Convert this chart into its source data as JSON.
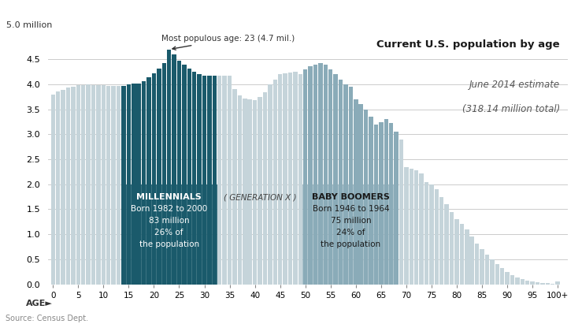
{
  "ages": [
    0,
    1,
    2,
    3,
    4,
    5,
    6,
    7,
    8,
    9,
    10,
    11,
    12,
    13,
    14,
    15,
    16,
    17,
    18,
    19,
    20,
    21,
    22,
    23,
    24,
    25,
    26,
    27,
    28,
    29,
    30,
    31,
    32,
    33,
    34,
    35,
    36,
    37,
    38,
    39,
    40,
    41,
    42,
    43,
    44,
    45,
    46,
    47,
    48,
    49,
    50,
    51,
    52,
    53,
    54,
    55,
    56,
    57,
    58,
    59,
    60,
    61,
    62,
    63,
    64,
    65,
    66,
    67,
    68,
    69,
    70,
    71,
    72,
    73,
    74,
    75,
    76,
    77,
    78,
    79,
    80,
    81,
    82,
    83,
    84,
    85,
    86,
    87,
    88,
    89,
    90,
    91,
    92,
    93,
    94,
    95,
    96,
    97,
    98,
    99,
    100
  ],
  "population": [
    3.8,
    3.86,
    3.89,
    3.93,
    3.96,
    3.98,
    3.99,
    4.0,
    3.99,
    3.98,
    3.98,
    3.97,
    3.97,
    3.97,
    3.97,
    4.0,
    4.01,
    4.02,
    4.07,
    4.14,
    4.22,
    4.32,
    4.43,
    4.7,
    4.6,
    4.48,
    4.4,
    4.32,
    4.25,
    4.2,
    4.18,
    4.18,
    4.17,
    4.18,
    4.18,
    4.18,
    3.9,
    3.78,
    3.72,
    3.7,
    3.69,
    3.75,
    3.85,
    4.0,
    4.1,
    4.2,
    4.22,
    4.24,
    4.26,
    4.2,
    4.3,
    4.37,
    4.4,
    4.43,
    4.39,
    4.3,
    4.2,
    4.1,
    4.0,
    3.95,
    3.7,
    3.6,
    3.5,
    3.35,
    3.2,
    3.25,
    3.3,
    3.22,
    3.05,
    2.9,
    2.35,
    2.32,
    2.28,
    2.22,
    2.05,
    2.0,
    1.9,
    1.75,
    1.6,
    1.45,
    1.3,
    1.2,
    1.1,
    0.95,
    0.82,
    0.7,
    0.6,
    0.5,
    0.4,
    0.32,
    0.24,
    0.18,
    0.14,
    0.1,
    0.07,
    0.05,
    0.04,
    0.03,
    0.02,
    0.01,
    0.06
  ],
  "millennials_start_age": 14,
  "millennials_end_age": 32,
  "genx_start_age": 33,
  "genx_end_age": 49,
  "boomers_start_age": 50,
  "boomers_end_age": 68,
  "color_millennials": "#1a5a6b",
  "color_boomers": "#8aabb8",
  "color_default": "#c5d4da",
  "ylim": [
    0,
    5.0
  ],
  "yticks": [
    0,
    0.5,
    1.0,
    1.5,
    2.0,
    2.5,
    3.0,
    3.5,
    4.0,
    4.5
  ],
  "ylabel_top": "5.0 million",
  "xlabel": "AGE►",
  "xtick_positions": [
    0,
    5,
    10,
    15,
    20,
    25,
    30,
    35,
    40,
    45,
    50,
    55,
    60,
    65,
    70,
    75,
    80,
    85,
    90,
    95,
    100
  ],
  "xtick_labels": [
    "0",
    "5",
    "10",
    "15",
    "20",
    "25",
    "30",
    "35",
    "40",
    "45",
    "50",
    "55",
    "60",
    "65",
    "70",
    "75",
    "80",
    "85",
    "90",
    "95",
    "100+"
  ],
  "title": "Current U.S. population by age",
  "subtitle1": "June 2014 estimate",
  "subtitle2": "(318.14 million total)",
  "annotation_text": "Most populous age: 23 (4.7 mil.)",
  "millennials_label1": "MILLENNIALS",
  "millennials_label2": "Born 1982 to 2000\n83 million\n26% of\nthe population",
  "genx_label": "( GENERATION X )",
  "boomers_label1": "BABY BOOMERS",
  "boomers_label2": "Born 1946 to 1964\n75 million\n24% of\nthe population",
  "source_text": "Source: Census Dept.",
  "background_color": "#ffffff",
  "grid_color": "#cccccc"
}
